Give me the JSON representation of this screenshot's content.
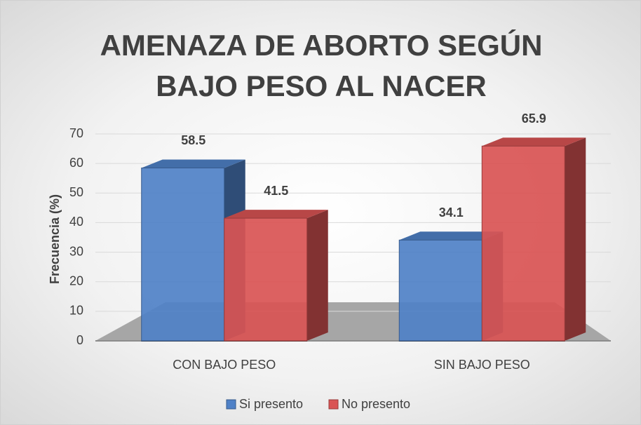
{
  "chart_data": {
    "type": "bar3d",
    "title": "AMENAZA DE ABORTO SEGÚN BAJO PESO AL NACER",
    "y_label": "Frecuencia (%)",
    "categories": [
      "CON BAJO PESO",
      "SIN BAJO PESO"
    ],
    "series": [
      {
        "name": "Si presento",
        "color": "#4f81c7",
        "values": [
          58.5,
          34.1
        ]
      },
      {
        "name": "No presento",
        "color": "#d95454",
        "values": [
          41.5,
          65.9
        ]
      }
    ],
    "ylim": [
      0,
      70
    ],
    "yticks": [
      0,
      10,
      20,
      30,
      40,
      50,
      60,
      70
    ],
    "grid": true,
    "legend": "bottom"
  }
}
